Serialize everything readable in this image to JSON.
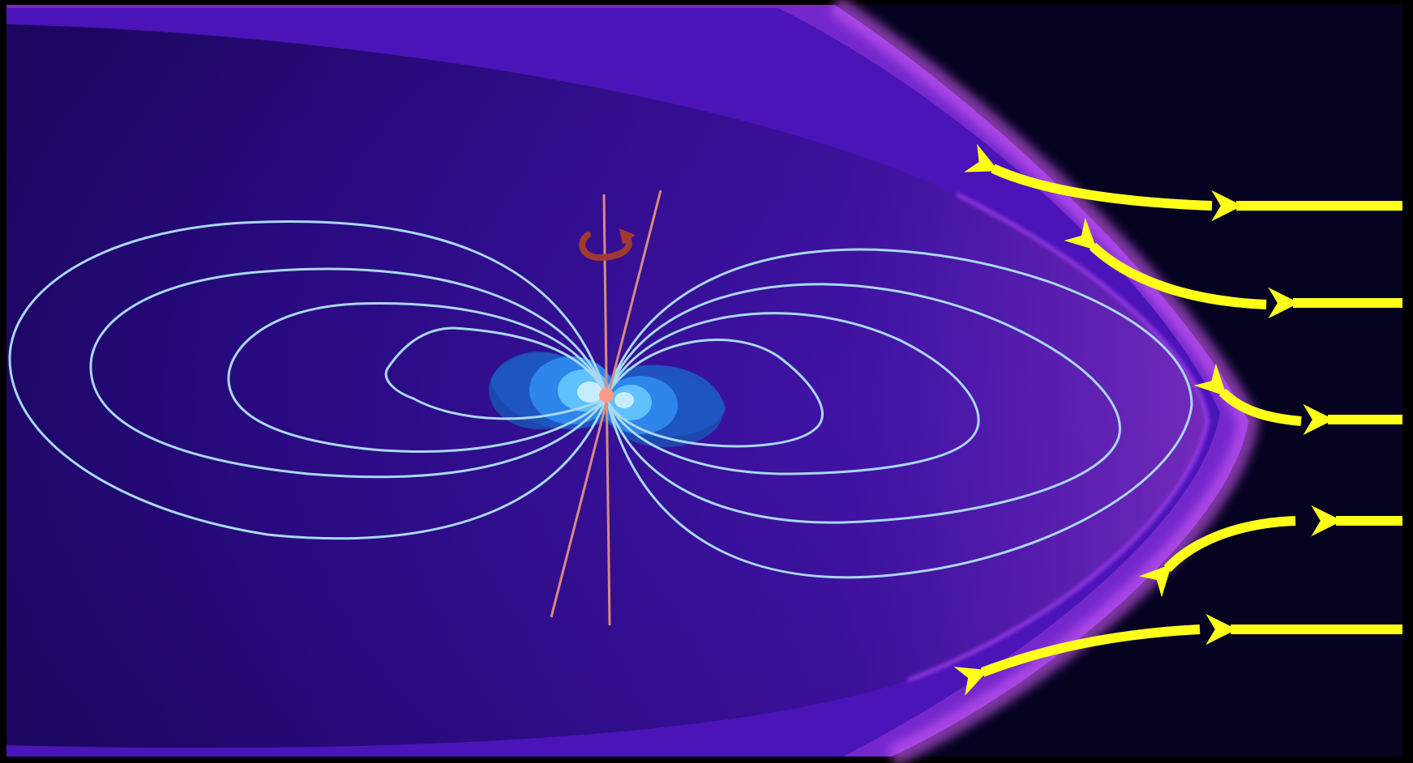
{
  "diagram": {
    "colors": {
      "background": "#000000",
      "space": "#050320",
      "magnetosphere_core": "#2a0a88",
      "magnetosphere_edge": "#9a3cf0",
      "bow_shock": "#c14cf5",
      "field_lines": "#a8d8f2",
      "solar_wind": "#ffff1a",
      "axis_lines": "#d98a80",
      "rotation_arrow": "#a03a30",
      "radiation_belt_outer": "#1c5cc8",
      "radiation_belt_mid": "#2e8ef0",
      "radiation_belt_inner": "#66c8ff",
      "planet_core": "#ff9a8a"
    },
    "icons": {
      "rotation": "curved-rotation-arrow-icon",
      "planet": "planet-dot-icon"
    },
    "field_loops_per_side": 4,
    "solar_wind_streams": 5
  }
}
